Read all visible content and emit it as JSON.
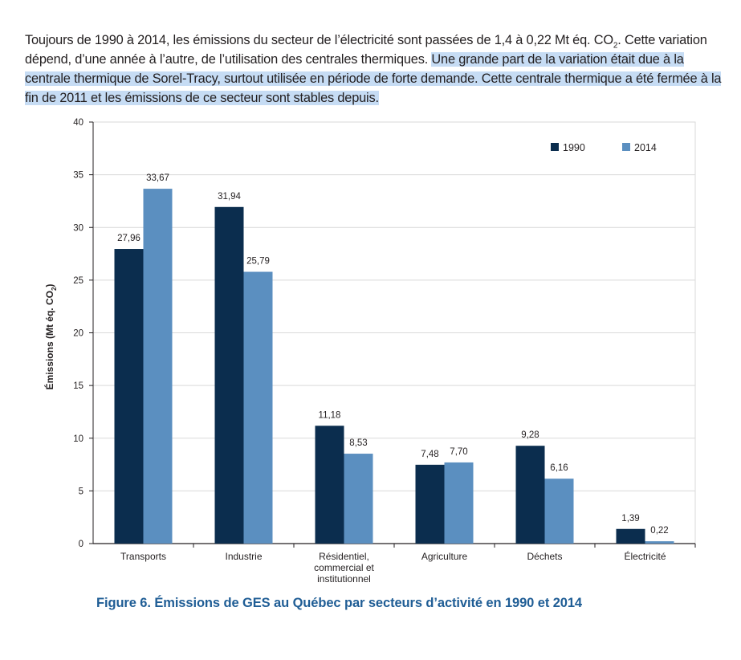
{
  "paragraph": {
    "part1": "Toujours de 1990 à 2014, les émissions du secteur de l’électricité sont passées de 1,4 à 0,22 Mt éq. CO",
    "sub": "2",
    "part2": ". Cette variation dépend, d’une année à l’autre, de l’utilisation des centrales thermiques. ",
    "highlighted": "Une grande part de la variation était due à la centrale thermique de Sorel-Tracy, surtout utilisée en période de forte demande. Cette centrale thermique a été fermée à la fin de 2011 et les émissions de ce secteur sont stables depuis."
  },
  "caption": "Figure 6. Émissions de GES au Québec par secteurs d’activité en 1990 et 2014",
  "chart_data": {
    "type": "bar",
    "categories": [
      "Transports",
      "Industrie",
      "Résidentiel, commercial et institutionnel",
      "Agriculture",
      "Déchets",
      "Électricité"
    ],
    "category_lines": [
      [
        "Transports"
      ],
      [
        "Industrie"
      ],
      [
        "Résidentiel,",
        "commercial et",
        "institutionnel"
      ],
      [
        "Agriculture"
      ],
      [
        "Déchets"
      ],
      [
        "Électricité"
      ]
    ],
    "series": [
      {
        "name": "1990",
        "color": "#0b2d4e",
        "values": [
          27.96,
          31.94,
          11.18,
          7.48,
          9.28,
          1.39
        ],
        "labels": [
          "27,96",
          "31,94",
          "11,18",
          "7,48",
          "9,28",
          "1,39"
        ]
      },
      {
        "name": "2014",
        "color": "#5b8fc0",
        "values": [
          33.67,
          25.79,
          8.53,
          7.7,
          6.16,
          0.22
        ],
        "labels": [
          "33,67",
          "25,79",
          "8,53",
          "7,70",
          "6,16",
          "0,22"
        ]
      }
    ],
    "ylabel_main": "Émissions (Mt éq. CO",
    "ylabel_sub": "2",
    "ylabel_end": ")",
    "ylim": [
      0,
      40
    ],
    "yticks": [
      0,
      5,
      10,
      15,
      20,
      25,
      30,
      35,
      40
    ],
    "grid": true,
    "legend": "top-right"
  }
}
